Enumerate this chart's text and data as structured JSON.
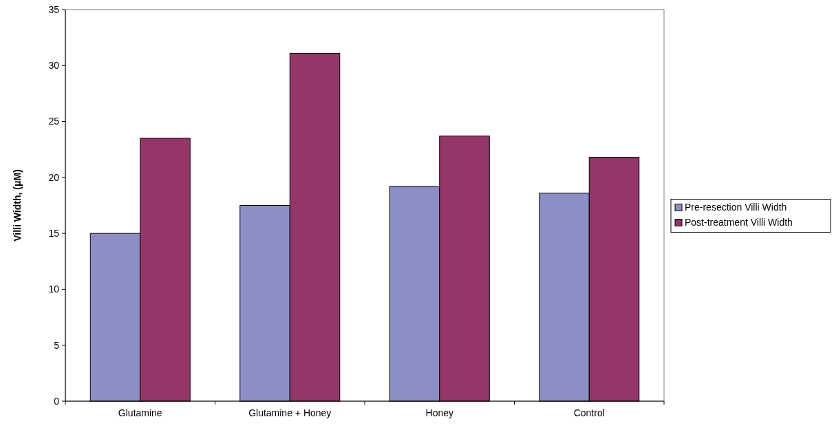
{
  "chart_data": {
    "type": "bar",
    "ylabel": "Villi Width, (μM)",
    "categories": [
      "Glutamine",
      "Glutamine + Honey",
      "Honey",
      "Control"
    ],
    "series": [
      {
        "name": "Pre-resection Villi Width",
        "color": "#8c8fc6",
        "values": [
          15.0,
          17.5,
          19.2,
          18.6
        ]
      },
      {
        "name": "Post-treatment Villi Width",
        "color": "#943768",
        "values": [
          23.5,
          31.1,
          23.7,
          21.8
        ]
      }
    ],
    "ylim": [
      0,
      35
    ],
    "yticks": [
      0,
      5,
      10,
      15,
      20,
      25,
      30,
      35
    ],
    "grid": false,
    "legend": "right"
  }
}
